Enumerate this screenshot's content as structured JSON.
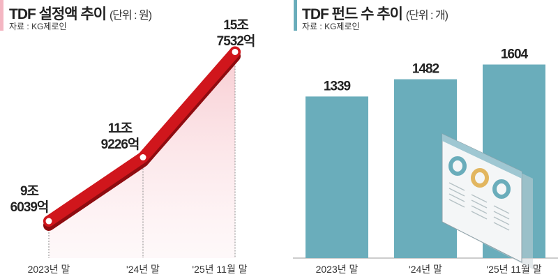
{
  "left": {
    "title": "TDF 설정액 추이",
    "unit": "(단위 : 원)",
    "source": "자료 : KG제로인",
    "accent": "#f4b6c2"
  },
  "right": {
    "title": "TDF 펀드 수 추이",
    "unit": "(단위 : 개)",
    "source": "자료 : KG제로인",
    "accent": "#6aadbb"
  },
  "chart_data": [
    {
      "type": "line",
      "title": "TDF 설정액 추이",
      "categories": [
        "2023년 말",
        "'24년 말",
        "'25년 11월 말"
      ],
      "values": [
        96039,
        119226,
        157532
      ],
      "value_unit": "억원",
      "labels": [
        [
          "9조",
          "6039억"
        ],
        [
          "11조",
          "9226억"
        ],
        [
          "15조",
          "7532억"
        ]
      ],
      "ylim": [
        75000,
        165000
      ],
      "color": "#d0161c"
    },
    {
      "type": "bar",
      "title": "TDF 펀드 수 추이",
      "categories": [
        "2023년 말",
        "'24년 말",
        "'25년 11월 말"
      ],
      "values": [
        1339,
        1482,
        1604
      ],
      "labels": [
        "1339",
        "1482",
        "1604"
      ],
      "ylim": [
        0,
        1700
      ],
      "color": "#6aadbb"
    }
  ]
}
